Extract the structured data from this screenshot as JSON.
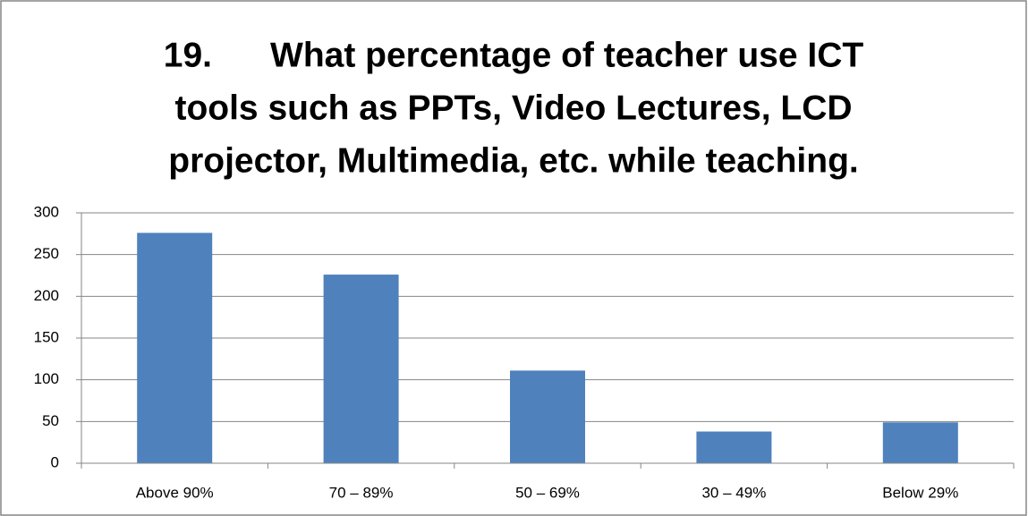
{
  "chart_data": {
    "type": "bar",
    "title": [
      "19.      What percentage of teacher use ICT",
      "tools such as PPTs, Video Lectures, LCD",
      "projector, Multimedia, etc. while teaching."
    ],
    "categories": [
      "Above 90%",
      "70 – 89%",
      "50 – 69%",
      "30 – 49%",
      "Below 29%"
    ],
    "values": [
      276,
      226,
      111,
      38,
      49
    ],
    "color": "#4f81bd",
    "ylim": [
      0,
      300
    ],
    "yticks": [
      0,
      50,
      100,
      150,
      200,
      250,
      300
    ],
    "grid": true
  }
}
